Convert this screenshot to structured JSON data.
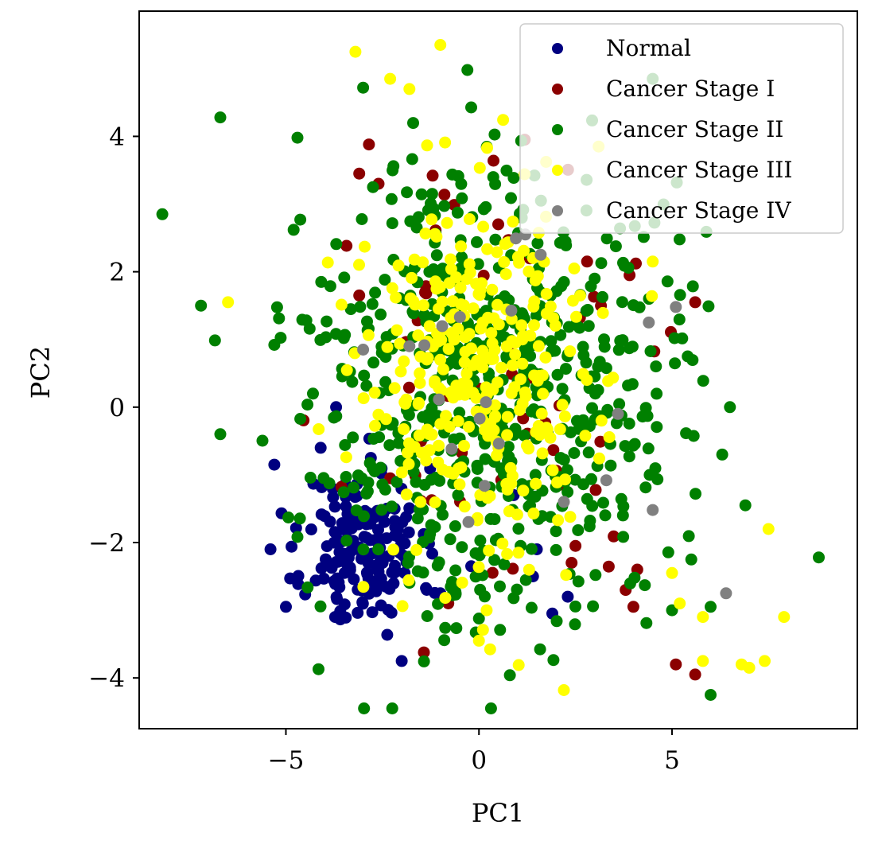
{
  "chart_data": {
    "type": "scatter",
    "title": "",
    "xlabel": "PC1",
    "ylabel": "PC2",
    "xlim": [
      -8.8,
      9.8
    ],
    "ylim": [
      -4.75,
      5.85
    ],
    "xticks": [
      -5,
      0,
      5
    ],
    "xtick_labels": [
      "−5",
      "0",
      "5"
    ],
    "yticks": [
      -4,
      -2,
      0,
      2,
      4
    ],
    "ytick_labels": [
      "−4",
      "−2",
      "0",
      "2",
      "4"
    ],
    "grid": false,
    "legend_position": "top-right",
    "series": [
      {
        "name": "Normal",
        "color": "#000080",
        "n": 170,
        "center": [
          -3.0,
          -2.1
        ],
        "spread": [
          0.75,
          0.6
        ],
        "seed": 11,
        "extra_points": [
          [
            -5.3,
            -0.85
          ],
          [
            -5.0,
            -2.95
          ],
          [
            -5.4,
            -2.1
          ],
          [
            -4.1,
            -0.6
          ],
          [
            -3.7,
            0.0
          ],
          [
            -2.8,
            -0.75
          ],
          [
            -2.0,
            -3.75
          ],
          [
            -1.0,
            -2.75
          ],
          [
            0.6,
            -0.6
          ],
          [
            1.4,
            -2.5
          ],
          [
            2.3,
            -2.8
          ],
          [
            1.9,
            -3.05
          ],
          [
            -0.2,
            -2.35
          ],
          [
            0.9,
            -1.3
          ],
          [
            1.5,
            -2.1
          ]
        ]
      },
      {
        "name": "Cancer Stage I",
        "color": "#8b0000",
        "n": 55,
        "center": [
          0.6,
          0.2
        ],
        "spread": [
          1.9,
          1.5
        ],
        "seed": 23,
        "extra_points": [
          [
            -2.85,
            3.88
          ],
          [
            -3.1,
            3.45
          ],
          [
            -2.6,
            3.3
          ],
          [
            -1.2,
            3.42
          ],
          [
            0.5,
            2.7
          ],
          [
            2.8,
            2.15
          ],
          [
            3.9,
            1.95
          ],
          [
            5.6,
            1.55
          ],
          [
            3.8,
            -2.7
          ],
          [
            4.0,
            -2.95
          ],
          [
            5.1,
            -3.8
          ],
          [
            5.6,
            -3.95
          ],
          [
            4.1,
            -2.4
          ],
          [
            2.4,
            -2.3
          ],
          [
            2.5,
            -2.05
          ],
          [
            -2.3,
            -1.05
          ],
          [
            -3.1,
            1.65
          ]
        ]
      },
      {
        "name": "Cancer Stage II",
        "color": "#008000",
        "n": 620,
        "center": [
          0.3,
          0.3
        ],
        "spread": [
          2.3,
          1.7
        ],
        "seed": 37,
        "extra_points": [
          [
            -8.2,
            2.85
          ],
          [
            -7.2,
            1.5
          ],
          [
            -6.7,
            4.28
          ],
          [
            -6.7,
            -0.4
          ],
          [
            -5.3,
            0.92
          ],
          [
            -4.7,
            3.98
          ],
          [
            -4.8,
            2.62
          ],
          [
            -4.3,
            0.2
          ],
          [
            -3.0,
            4.72
          ],
          [
            -0.3,
            4.98
          ],
          [
            8.8,
            -2.22
          ],
          [
            6.9,
            -1.45
          ],
          [
            6.0,
            -4.25
          ],
          [
            6.5,
            0.0
          ],
          [
            6.3,
            -0.7
          ],
          [
            6.0,
            -2.95
          ],
          [
            5.5,
            -2.25
          ],
          [
            5.0,
            -3.0
          ],
          [
            4.5,
            4.85
          ]
        ]
      },
      {
        "name": "Cancer Stage III",
        "color": "#ffff00",
        "n": 310,
        "center": [
          0.1,
          0.4
        ],
        "spread": [
          1.6,
          1.4
        ],
        "seed": 53,
        "extra_points": [
          [
            -3.2,
            5.25
          ],
          [
            -1.0,
            5.35
          ],
          [
            -2.3,
            4.85
          ],
          [
            -1.8,
            4.7
          ],
          [
            -6.5,
            1.55
          ],
          [
            4.5,
            2.15
          ],
          [
            7.5,
            -1.8
          ],
          [
            7.9,
            -3.1
          ],
          [
            7.4,
            -3.75
          ],
          [
            6.8,
            -3.8
          ],
          [
            5.8,
            -3.75
          ],
          [
            5.8,
            -3.1
          ],
          [
            7.0,
            -3.85
          ],
          [
            2.2,
            -4.18
          ],
          [
            0.0,
            -3.45
          ],
          [
            0.2,
            -3.0
          ],
          [
            5.0,
            -2.45
          ],
          [
            5.2,
            -2.9
          ],
          [
            3.1,
            3.85
          ]
        ]
      },
      {
        "name": "Cancer Stage IV",
        "color": "#808080",
        "n": 12,
        "center": [
          0.5,
          0.2
        ],
        "spread": [
          1.5,
          1.0
        ],
        "seed": 71,
        "extra_points": [
          [
            1.6,
            2.25
          ],
          [
            5.1,
            1.48
          ],
          [
            4.4,
            1.25
          ],
          [
            -3.0,
            0.85
          ],
          [
            -1.8,
            0.9
          ],
          [
            3.6,
            -0.1
          ],
          [
            3.3,
            -1.08
          ],
          [
            2.2,
            -1.4
          ],
          [
            4.5,
            -1.52
          ],
          [
            6.4,
            -2.75
          ],
          [
            1.2,
            2.55
          ]
        ]
      }
    ]
  }
}
